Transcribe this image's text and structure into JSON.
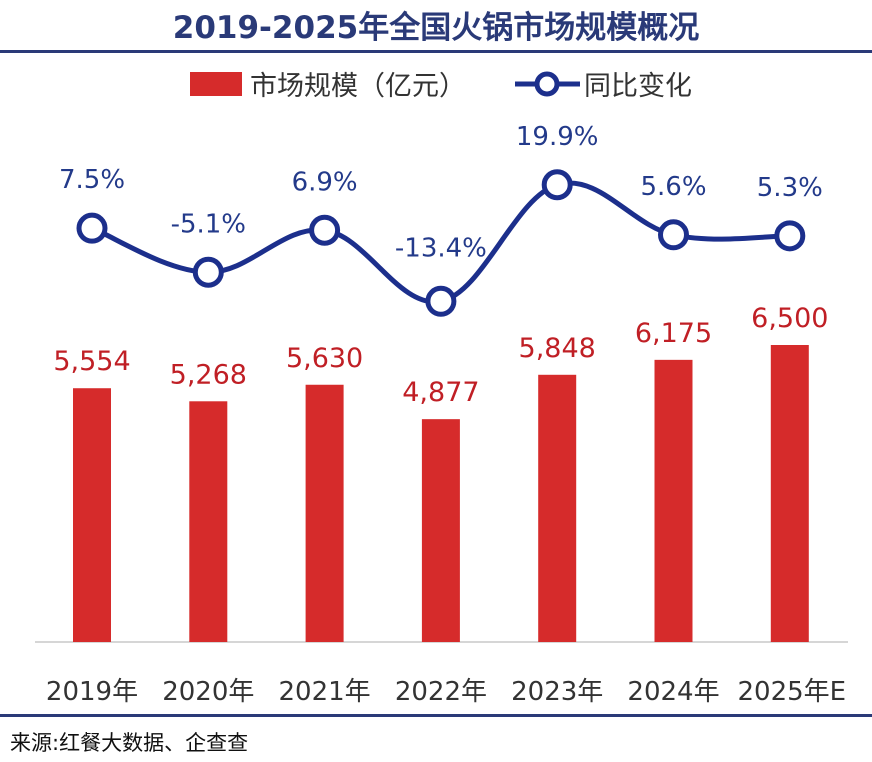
{
  "title": "2019-2025年全国火锅市场规模概况",
  "source": "来源:红餐大数据、企查查",
  "colors": {
    "bar": "#d62b2b",
    "line": "#1c2f8c",
    "title": "#2a3a78"
  },
  "chart_data": {
    "type": "bar",
    "categories": [
      "2019年",
      "2020年",
      "2021年",
      "2022年",
      "2023年",
      "2024年",
      "2025年E"
    ],
    "series": [
      {
        "name": "市场规模（亿元）",
        "type": "bar",
        "values": [
          5554,
          5268,
          5630,
          4877,
          5848,
          6175,
          6500
        ],
        "labels": [
          "5,554",
          "5,268",
          "5,630",
          "4,877",
          "5,848",
          "6,175",
          "6,500"
        ]
      },
      {
        "name": "同比变化",
        "type": "line",
        "values": [
          7.5,
          -5.1,
          6.9,
          -13.4,
          19.9,
          5.6,
          5.3
        ],
        "labels": [
          "7.5%",
          "-5.1%",
          "6.9%",
          "-13.4%",
          "19.9%",
          "5.6%",
          "5.3%"
        ]
      }
    ],
    "legend": "top",
    "grid": false
  }
}
